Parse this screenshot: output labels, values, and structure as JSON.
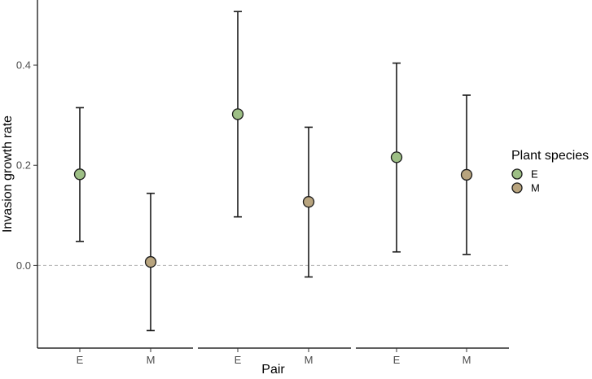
{
  "chart_data": {
    "type": "scatter",
    "xlabel": "Pair",
    "ylabel": "Invasion growth rate",
    "ylim": [
      -0.165,
      0.53
    ],
    "yticks": [
      0.0,
      0.2,
      0.4
    ],
    "ytick_labels": [
      "0.0",
      "0.2",
      "0.4"
    ],
    "reference_line_y": 0.0,
    "groups": 3,
    "x_labels": [
      "E",
      "M",
      "E",
      "M",
      "E",
      "M"
    ],
    "points": [
      {
        "group": 1,
        "label": "E",
        "species": "E",
        "y": 0.182,
        "ymin": 0.048,
        "ymax": 0.315
      },
      {
        "group": 1,
        "label": "M",
        "species": "M",
        "y": 0.007,
        "ymin": -0.13,
        "ymax": 0.144
      },
      {
        "group": 2,
        "label": "E",
        "species": "E",
        "y": 0.302,
        "ymin": 0.097,
        "ymax": 0.507
      },
      {
        "group": 2,
        "label": "M",
        "species": "M",
        "y": 0.127,
        "ymin": -0.023,
        "ymax": 0.276
      },
      {
        "group": 3,
        "label": "E",
        "species": "E",
        "y": 0.216,
        "ymin": 0.027,
        "ymax": 0.404
      },
      {
        "group": 3,
        "label": "M",
        "species": "M",
        "y": 0.181,
        "ymin": 0.022,
        "ymax": 0.34
      }
    ],
    "legend": {
      "title": "Plant species",
      "placement": "right",
      "entries": [
        {
          "name": "E",
          "color": "#9dbf85"
        },
        {
          "name": "M",
          "color": "#b8a47e"
        }
      ]
    },
    "grid": false
  }
}
